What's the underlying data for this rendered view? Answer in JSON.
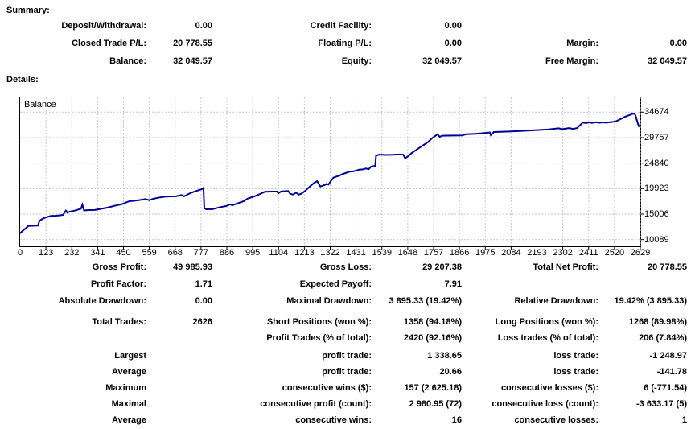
{
  "summary": {
    "title": "Summary:",
    "rows": [
      {
        "l1": "Deposit/Withdrawal:",
        "v1": "0.00",
        "l2": "Credit Facility:",
        "v2": "0.00",
        "l3": "",
        "v3": ""
      },
      {
        "l1": "Closed Trade P/L:",
        "v1": "20 778.55",
        "l2": "Floating P/L:",
        "v2": "0.00",
        "l3": "Margin:",
        "v3": "0.00"
      },
      {
        "l1": "Balance:",
        "v1": "32 049.57",
        "l2": "Equity:",
        "v2": "32 049.57",
        "l3": "Free Margin:",
        "v3": "32 049.57"
      }
    ]
  },
  "details": {
    "title": "Details:",
    "rows": [
      {
        "l1": "Gross Profit:",
        "v1": "49 985.93",
        "l2": "Gross Loss:",
        "v2": "29 207.38",
        "l3": "Total Net Profit:",
        "v3": "20 778.55"
      },
      {
        "l1": "Profit Factor:",
        "v1": "1.71",
        "l2": "Expected Payoff:",
        "v2": "7.91",
        "l3": "",
        "v3": ""
      },
      {
        "l1": "Absolute Drawdown:",
        "v1": "0.00",
        "l2": "Maximal Drawdown:",
        "v2": "3 895.33 (19.42%)",
        "l3": "Relative Drawdown:",
        "v3": "19.42% (3 895.33)"
      },
      {
        "l1": "Total Trades:",
        "v1": "2626",
        "l2": "Short Positions (won %):",
        "v2": "1358 (94.18%)",
        "l3": "Long Positions (won %):",
        "v3": "1268 (89.98%)"
      },
      {
        "l1": "",
        "v1": "",
        "l2": "Profit Trades (% of total):",
        "v2": "2420 (92.16%)",
        "l3": "Loss trades (% of total):",
        "v3": "206 (7.84%)"
      },
      {
        "l1": "Largest",
        "v1": "",
        "l2": "profit trade:",
        "v2": "1 338.65",
        "l3": "loss trade:",
        "v3": "-1 248.97"
      },
      {
        "l1": "Average",
        "v1": "",
        "l2": "profit trade:",
        "v2": "20.66",
        "l3": "loss trade:",
        "v3": "-141.78"
      },
      {
        "l1": "Maximum",
        "v1": "",
        "l2": "consecutive wins ($):",
        "v2": "157 (2 625.18)",
        "l3": "consecutive losses ($):",
        "v3": "6 (-771.54)"
      },
      {
        "l1": "Maximal",
        "v1": "",
        "l2": "consecutive profit (count):",
        "v2": "2 980.95 (72)",
        "l3": "consecutive loss (count):",
        "v3": "-3 633.17 (5)"
      },
      {
        "l1": "Average",
        "v1": "",
        "l2": "consecutive wins:",
        "v2": "16",
        "l3": "consecutive losses:",
        "v3": "1"
      }
    ]
  },
  "chart_data": {
    "type": "line",
    "title": "Balance",
    "legend": "Balance",
    "xlabel": "",
    "ylabel": "",
    "x_range": [
      0,
      2629
    ],
    "y_range": [
      8800,
      37510
    ],
    "grid": true,
    "legend_position": "top-left",
    "line_color": "#000096",
    "grid_color": "#c8c8c8",
    "x_ticks": [
      "0",
      "123",
      "232",
      "341",
      "450",
      "559",
      "668",
      "777",
      "886",
      "995",
      "1104",
      "1213",
      "1322",
      "1431",
      "1539",
      "1648",
      "1757",
      "1866",
      "1975",
      "2084",
      "2193",
      "2302",
      "2411",
      "2520",
      "2629"
    ],
    "y_ticks": [
      34674,
      29757,
      24840,
      19923,
      15006,
      10089
    ],
    "series": [
      {
        "name": "Balance",
        "points": [
          [
            0,
            11271
          ],
          [
            8,
            11650
          ],
          [
            15,
            11950
          ],
          [
            22,
            12200
          ],
          [
            28,
            12450
          ],
          [
            35,
            12725
          ],
          [
            50,
            12750
          ],
          [
            65,
            12770
          ],
          [
            76,
            12800
          ],
          [
            81,
            13610
          ],
          [
            87,
            13870
          ],
          [
            100,
            14200
          ],
          [
            115,
            14450
          ],
          [
            131,
            14650
          ],
          [
            150,
            14700
          ],
          [
            170,
            14780
          ],
          [
            182,
            14850
          ],
          [
            194,
            15670
          ],
          [
            200,
            15270
          ],
          [
            210,
            15480
          ],
          [
            225,
            15600
          ],
          [
            240,
            15800
          ],
          [
            258,
            16040
          ],
          [
            264,
            16820
          ],
          [
            271,
            15700
          ],
          [
            290,
            15790
          ],
          [
            316,
            15800
          ],
          [
            340,
            16000
          ],
          [
            370,
            16250
          ],
          [
            400,
            16600
          ],
          [
            430,
            16900
          ],
          [
            463,
            17490
          ],
          [
            497,
            17640
          ],
          [
            531,
            17900
          ],
          [
            548,
            17690
          ],
          [
            565,
            17950
          ],
          [
            582,
            18150
          ],
          [
            617,
            18370
          ],
          [
            640,
            18420
          ],
          [
            661,
            18430
          ],
          [
            685,
            18680
          ],
          [
            695,
            18420
          ],
          [
            719,
            18990
          ],
          [
            736,
            19300
          ],
          [
            753,
            19550
          ],
          [
            770,
            19810
          ],
          [
            777,
            20058
          ],
          [
            781,
            16163
          ],
          [
            788,
            15940
          ],
          [
            815,
            15960
          ],
          [
            849,
            16360
          ],
          [
            873,
            16560
          ],
          [
            890,
            16870
          ],
          [
            900,
            16710
          ],
          [
            931,
            17220
          ],
          [
            948,
            17490
          ],
          [
            965,
            18000
          ],
          [
            982,
            18260
          ],
          [
            999,
            18530
          ],
          [
            1017,
            18880
          ],
          [
            1037,
            19300
          ],
          [
            1070,
            19350
          ],
          [
            1089,
            19360
          ],
          [
            1095,
            19040
          ],
          [
            1106,
            19390
          ],
          [
            1136,
            19460
          ],
          [
            1145,
            18930
          ],
          [
            1157,
            18780
          ],
          [
            1170,
            19150
          ],
          [
            1181,
            18780
          ],
          [
            1191,
            18930
          ],
          [
            1208,
            19460
          ],
          [
            1222,
            20080
          ],
          [
            1232,
            20480
          ],
          [
            1249,
            21100
          ],
          [
            1259,
            21360
          ],
          [
            1273,
            20330
          ],
          [
            1290,
            20590
          ],
          [
            1300,
            20850
          ],
          [
            1307,
            20700
          ],
          [
            1317,
            21360
          ],
          [
            1328,
            22030
          ],
          [
            1341,
            22250
          ],
          [
            1352,
            22400
          ],
          [
            1362,
            22650
          ],
          [
            1379,
            22920
          ],
          [
            1396,
            23180
          ],
          [
            1413,
            23270
          ],
          [
            1427,
            23430
          ],
          [
            1437,
            23580
          ],
          [
            1454,
            23640
          ],
          [
            1465,
            23800
          ],
          [
            1478,
            23690
          ],
          [
            1488,
            24200
          ],
          [
            1505,
            24310
          ],
          [
            1509,
            26280
          ],
          [
            1516,
            26380
          ],
          [
            1523,
            26490
          ],
          [
            1550,
            26420
          ],
          [
            1580,
            26440
          ],
          [
            1610,
            26500
          ],
          [
            1625,
            26450
          ],
          [
            1632,
            25750
          ],
          [
            1649,
            26330
          ],
          [
            1660,
            26800
          ],
          [
            1677,
            27310
          ],
          [
            1694,
            27840
          ],
          [
            1711,
            28360
          ],
          [
            1728,
            28870
          ],
          [
            1745,
            29600
          ],
          [
            1762,
            30160
          ],
          [
            1769,
            30410
          ],
          [
            1779,
            29900
          ],
          [
            1789,
            30130
          ],
          [
            1835,
            30150
          ],
          [
            1875,
            30170
          ],
          [
            1889,
            30400
          ],
          [
            1930,
            30500
          ],
          [
            1960,
            30600
          ],
          [
            1991,
            30750
          ],
          [
            1995,
            30250
          ],
          [
            2008,
            30830
          ],
          [
            2060,
            30920
          ],
          [
            2120,
            31020
          ],
          [
            2183,
            31180
          ],
          [
            2241,
            31340
          ],
          [
            2282,
            31550
          ],
          [
            2299,
            31400
          ],
          [
            2327,
            31600
          ],
          [
            2344,
            31440
          ],
          [
            2361,
            31600
          ],
          [
            2385,
            32650
          ],
          [
            2400,
            32580
          ],
          [
            2412,
            32720
          ],
          [
            2424,
            32590
          ],
          [
            2440,
            32730
          ],
          [
            2455,
            32620
          ],
          [
            2470,
            32700
          ],
          [
            2485,
            32640
          ],
          [
            2500,
            32740
          ],
          [
            2515,
            32820
          ],
          [
            2525,
            32890
          ],
          [
            2542,
            33260
          ],
          [
            2556,
            33620
          ],
          [
            2570,
            33900
          ],
          [
            2583,
            34100
          ],
          [
            2594,
            34300
          ],
          [
            2604,
            34420
          ],
          [
            2609,
            34000
          ],
          [
            2614,
            33200
          ],
          [
            2619,
            32400
          ],
          [
            2623,
            31950
          ],
          [
            2626,
            32049.57
          ]
        ]
      }
    ]
  },
  "colors": {
    "background": "#ffffff",
    "text": "#000000",
    "curve": "#000096",
    "grid": "#c8c8c8",
    "border": "#000000"
  }
}
